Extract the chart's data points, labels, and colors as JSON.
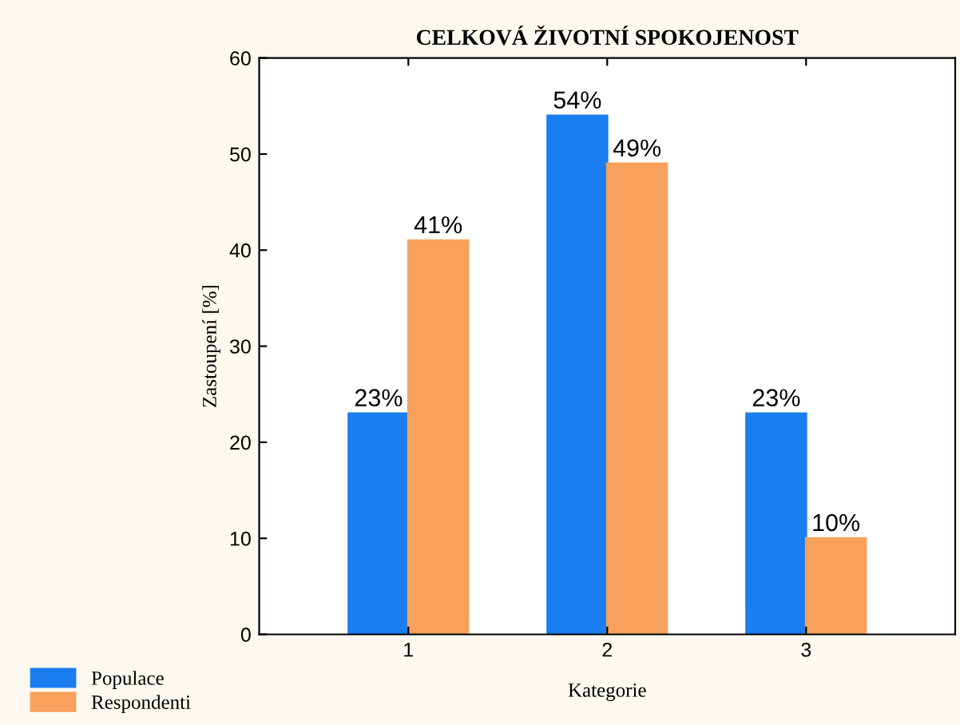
{
  "chart_data": {
    "type": "bar",
    "title": "CELKOVÁ ŽIVOTNÍ SPOKOJENOST",
    "xlabel": "Kategorie",
    "ylabel": "Zastoupení [%]",
    "categories": [
      "1",
      "2",
      "3"
    ],
    "series": [
      {
        "name": "Populace",
        "color": "#1a7ef0",
        "values": [
          23,
          54,
          23
        ],
        "value_labels": [
          "23%",
          "54%",
          "23%"
        ]
      },
      {
        "name": "Respondenti",
        "color": "#f7a15c",
        "values": [
          41,
          49,
          10
        ],
        "value_labels": [
          "41%",
          "49%",
          "10%"
        ]
      }
    ],
    "ylim": [
      0,
      60
    ],
    "yticks": [
      0,
      10,
      20,
      30,
      40,
      50,
      60
    ],
    "grid": false,
    "legend": "bottom left"
  }
}
